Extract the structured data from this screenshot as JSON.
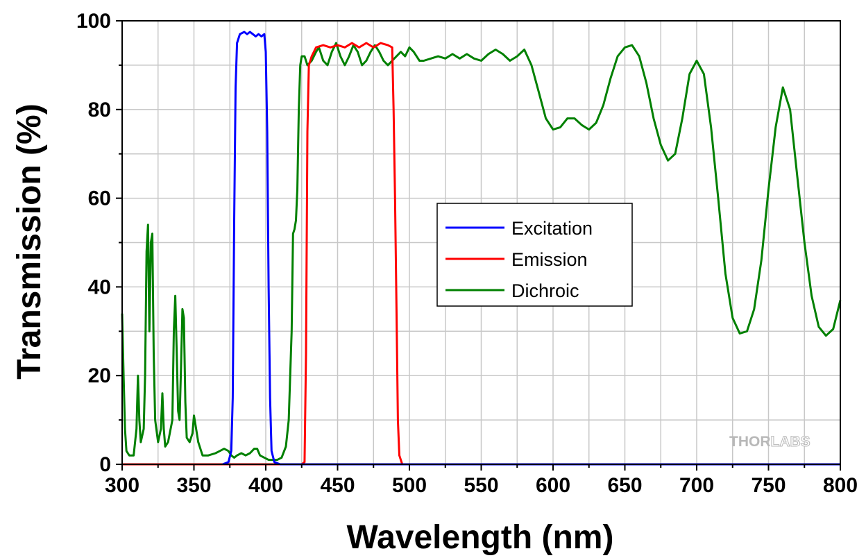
{
  "chart_data": {
    "type": "line",
    "title": "",
    "xlabel": "Wavelength (nm)",
    "ylabel": "Transmission (%)",
    "xlim": [
      300,
      800
    ],
    "ylim": [
      0,
      100
    ],
    "xticks": [
      300,
      350,
      400,
      450,
      500,
      550,
      600,
      650,
      700,
      750,
      800
    ],
    "yticks": [
      0,
      20,
      40,
      60,
      80,
      100
    ],
    "grid": true,
    "legend_position": "center",
    "logo_text": "THORLABS",
    "series": [
      {
        "name": "Excitation",
        "color": "#0000ff",
        "points": [
          [
            370,
            0
          ],
          [
            374,
            0.5
          ],
          [
            376,
            3
          ],
          [
            377,
            15
          ],
          [
            378,
            55
          ],
          [
            379,
            85
          ],
          [
            380,
            95
          ],
          [
            382,
            97
          ],
          [
            385,
            97.5
          ],
          [
            387,
            97
          ],
          [
            389,
            97.5
          ],
          [
            391,
            97
          ],
          [
            393,
            96.5
          ],
          [
            395,
            97
          ],
          [
            397,
            96.5
          ],
          [
            399,
            97
          ],
          [
            400,
            93
          ],
          [
            401,
            75
          ],
          [
            402,
            40
          ],
          [
            403,
            15
          ],
          [
            404,
            3
          ],
          [
            406,
            0.5
          ],
          [
            410,
            0
          ],
          [
            800,
            0
          ]
        ]
      },
      {
        "name": "Emission",
        "color": "#ff0000",
        "points": [
          [
            300,
            0
          ],
          [
            425,
            0
          ],
          [
            427,
            0.5
          ],
          [
            428,
            25
          ],
          [
            429,
            75
          ],
          [
            430,
            90
          ],
          [
            432,
            92
          ],
          [
            435,
            94
          ],
          [
            440,
            94.5
          ],
          [
            445,
            94
          ],
          [
            450,
            94.5
          ],
          [
            455,
            94
          ],
          [
            460,
            95
          ],
          [
            465,
            94
          ],
          [
            470,
            95
          ],
          [
            475,
            94
          ],
          [
            480,
            95
          ],
          [
            485,
            94.5
          ],
          [
            488,
            94
          ],
          [
            489,
            80
          ],
          [
            490,
            60
          ],
          [
            491,
            35
          ],
          [
            492,
            10
          ],
          [
            493,
            2
          ],
          [
            495,
            0
          ],
          [
            800,
            0
          ]
        ]
      },
      {
        "name": "Dichroic",
        "color": "#008000",
        "points": [
          [
            300,
            34
          ],
          [
            301,
            20
          ],
          [
            302,
            8
          ],
          [
            303,
            3
          ],
          [
            305,
            2
          ],
          [
            308,
            2
          ],
          [
            310,
            8
          ],
          [
            311,
            20
          ],
          [
            312,
            10
          ],
          [
            313,
            5
          ],
          [
            315,
            8
          ],
          [
            316,
            20
          ],
          [
            317,
            48
          ],
          [
            318,
            54
          ],
          [
            319,
            30
          ],
          [
            320,
            50
          ],
          [
            321,
            52
          ],
          [
            322,
            25
          ],
          [
            323,
            10
          ],
          [
            325,
            5
          ],
          [
            327,
            8
          ],
          [
            328,
            16
          ],
          [
            329,
            8
          ],
          [
            330,
            4
          ],
          [
            332,
            5
          ],
          [
            335,
            10
          ],
          [
            336,
            30
          ],
          [
            337,
            38
          ],
          [
            338,
            25
          ],
          [
            339,
            12
          ],
          [
            340,
            10
          ],
          [
            341,
            22
          ],
          [
            342,
            35
          ],
          [
            343,
            33
          ],
          [
            344,
            14
          ],
          [
            345,
            6
          ],
          [
            347,
            5
          ],
          [
            349,
            7
          ],
          [
            350,
            11
          ],
          [
            351,
            9
          ],
          [
            353,
            5
          ],
          [
            356,
            2
          ],
          [
            360,
            2
          ],
          [
            365,
            2.5
          ],
          [
            368,
            3
          ],
          [
            371,
            3.5
          ],
          [
            374,
            3
          ],
          [
            376,
            2
          ],
          [
            378,
            1.5
          ],
          [
            380,
            2
          ],
          [
            383,
            2.5
          ],
          [
            386,
            2
          ],
          [
            389,
            2.5
          ],
          [
            392,
            3.5
          ],
          [
            394,
            3.5
          ],
          [
            396,
            2
          ],
          [
            399,
            1.5
          ],
          [
            402,
            1
          ],
          [
            405,
            1
          ],
          [
            408,
            1
          ],
          [
            411,
            1.5
          ],
          [
            414,
            4
          ],
          [
            416,
            10
          ],
          [
            418,
            30
          ],
          [
            419,
            52
          ],
          [
            420,
            53
          ],
          [
            421,
            55
          ],
          [
            422,
            62
          ],
          [
            423,
            80
          ],
          [
            424,
            90
          ],
          [
            425,
            92
          ],
          [
            427,
            92
          ],
          [
            429,
            90
          ],
          [
            432,
            91
          ],
          [
            435,
            93
          ],
          [
            437,
            94
          ],
          [
            440,
            91
          ],
          [
            443,
            90
          ],
          [
            446,
            93
          ],
          [
            449,
            95
          ],
          [
            452,
            92
          ],
          [
            455,
            90
          ],
          [
            458,
            92
          ],
          [
            461,
            94.5
          ],
          [
            464,
            93
          ],
          [
            467,
            90
          ],
          [
            470,
            91
          ],
          [
            473,
            93
          ],
          [
            476,
            94.5
          ],
          [
            479,
            93
          ],
          [
            482,
            91
          ],
          [
            485,
            90
          ],
          [
            488,
            91
          ],
          [
            491,
            92
          ],
          [
            494,
            93
          ],
          [
            497,
            92
          ],
          [
            500,
            94
          ],
          [
            503,
            93
          ],
          [
            507,
            91
          ],
          [
            510,
            91
          ],
          [
            515,
            91.5
          ],
          [
            520,
            92
          ],
          [
            525,
            91.5
          ],
          [
            530,
            92.5
          ],
          [
            535,
            91.5
          ],
          [
            540,
            92.5
          ],
          [
            545,
            91.5
          ],
          [
            550,
            91
          ],
          [
            555,
            92.5
          ],
          [
            560,
            93.5
          ],
          [
            565,
            92.5
          ],
          [
            570,
            91
          ],
          [
            575,
            92
          ],
          [
            580,
            93.5
          ],
          [
            585,
            90
          ],
          [
            590,
            84
          ],
          [
            595,
            78
          ],
          [
            600,
            75.5
          ],
          [
            605,
            76
          ],
          [
            610,
            78
          ],
          [
            615,
            78
          ],
          [
            620,
            76.5
          ],
          [
            625,
            75.5
          ],
          [
            630,
            77
          ],
          [
            635,
            81
          ],
          [
            640,
            87
          ],
          [
            645,
            92
          ],
          [
            650,
            94
          ],
          [
            655,
            94.5
          ],
          [
            660,
            92
          ],
          [
            665,
            86
          ],
          [
            670,
            78
          ],
          [
            675,
            72
          ],
          [
            680,
            68.5
          ],
          [
            685,
            70
          ],
          [
            690,
            78
          ],
          [
            695,
            88
          ],
          [
            700,
            91
          ],
          [
            705,
            88
          ],
          [
            710,
            76
          ],
          [
            715,
            60
          ],
          [
            720,
            43
          ],
          [
            725,
            33
          ],
          [
            730,
            29.5
          ],
          [
            735,
            30
          ],
          [
            740,
            35
          ],
          [
            745,
            46
          ],
          [
            750,
            62
          ],
          [
            755,
            76
          ],
          [
            760,
            85
          ],
          [
            765,
            80
          ],
          [
            770,
            65
          ],
          [
            775,
            50
          ],
          [
            780,
            38
          ],
          [
            785,
            31
          ],
          [
            790,
            29
          ],
          [
            795,
            30.5
          ],
          [
            800,
            37
          ]
        ]
      }
    ]
  }
}
